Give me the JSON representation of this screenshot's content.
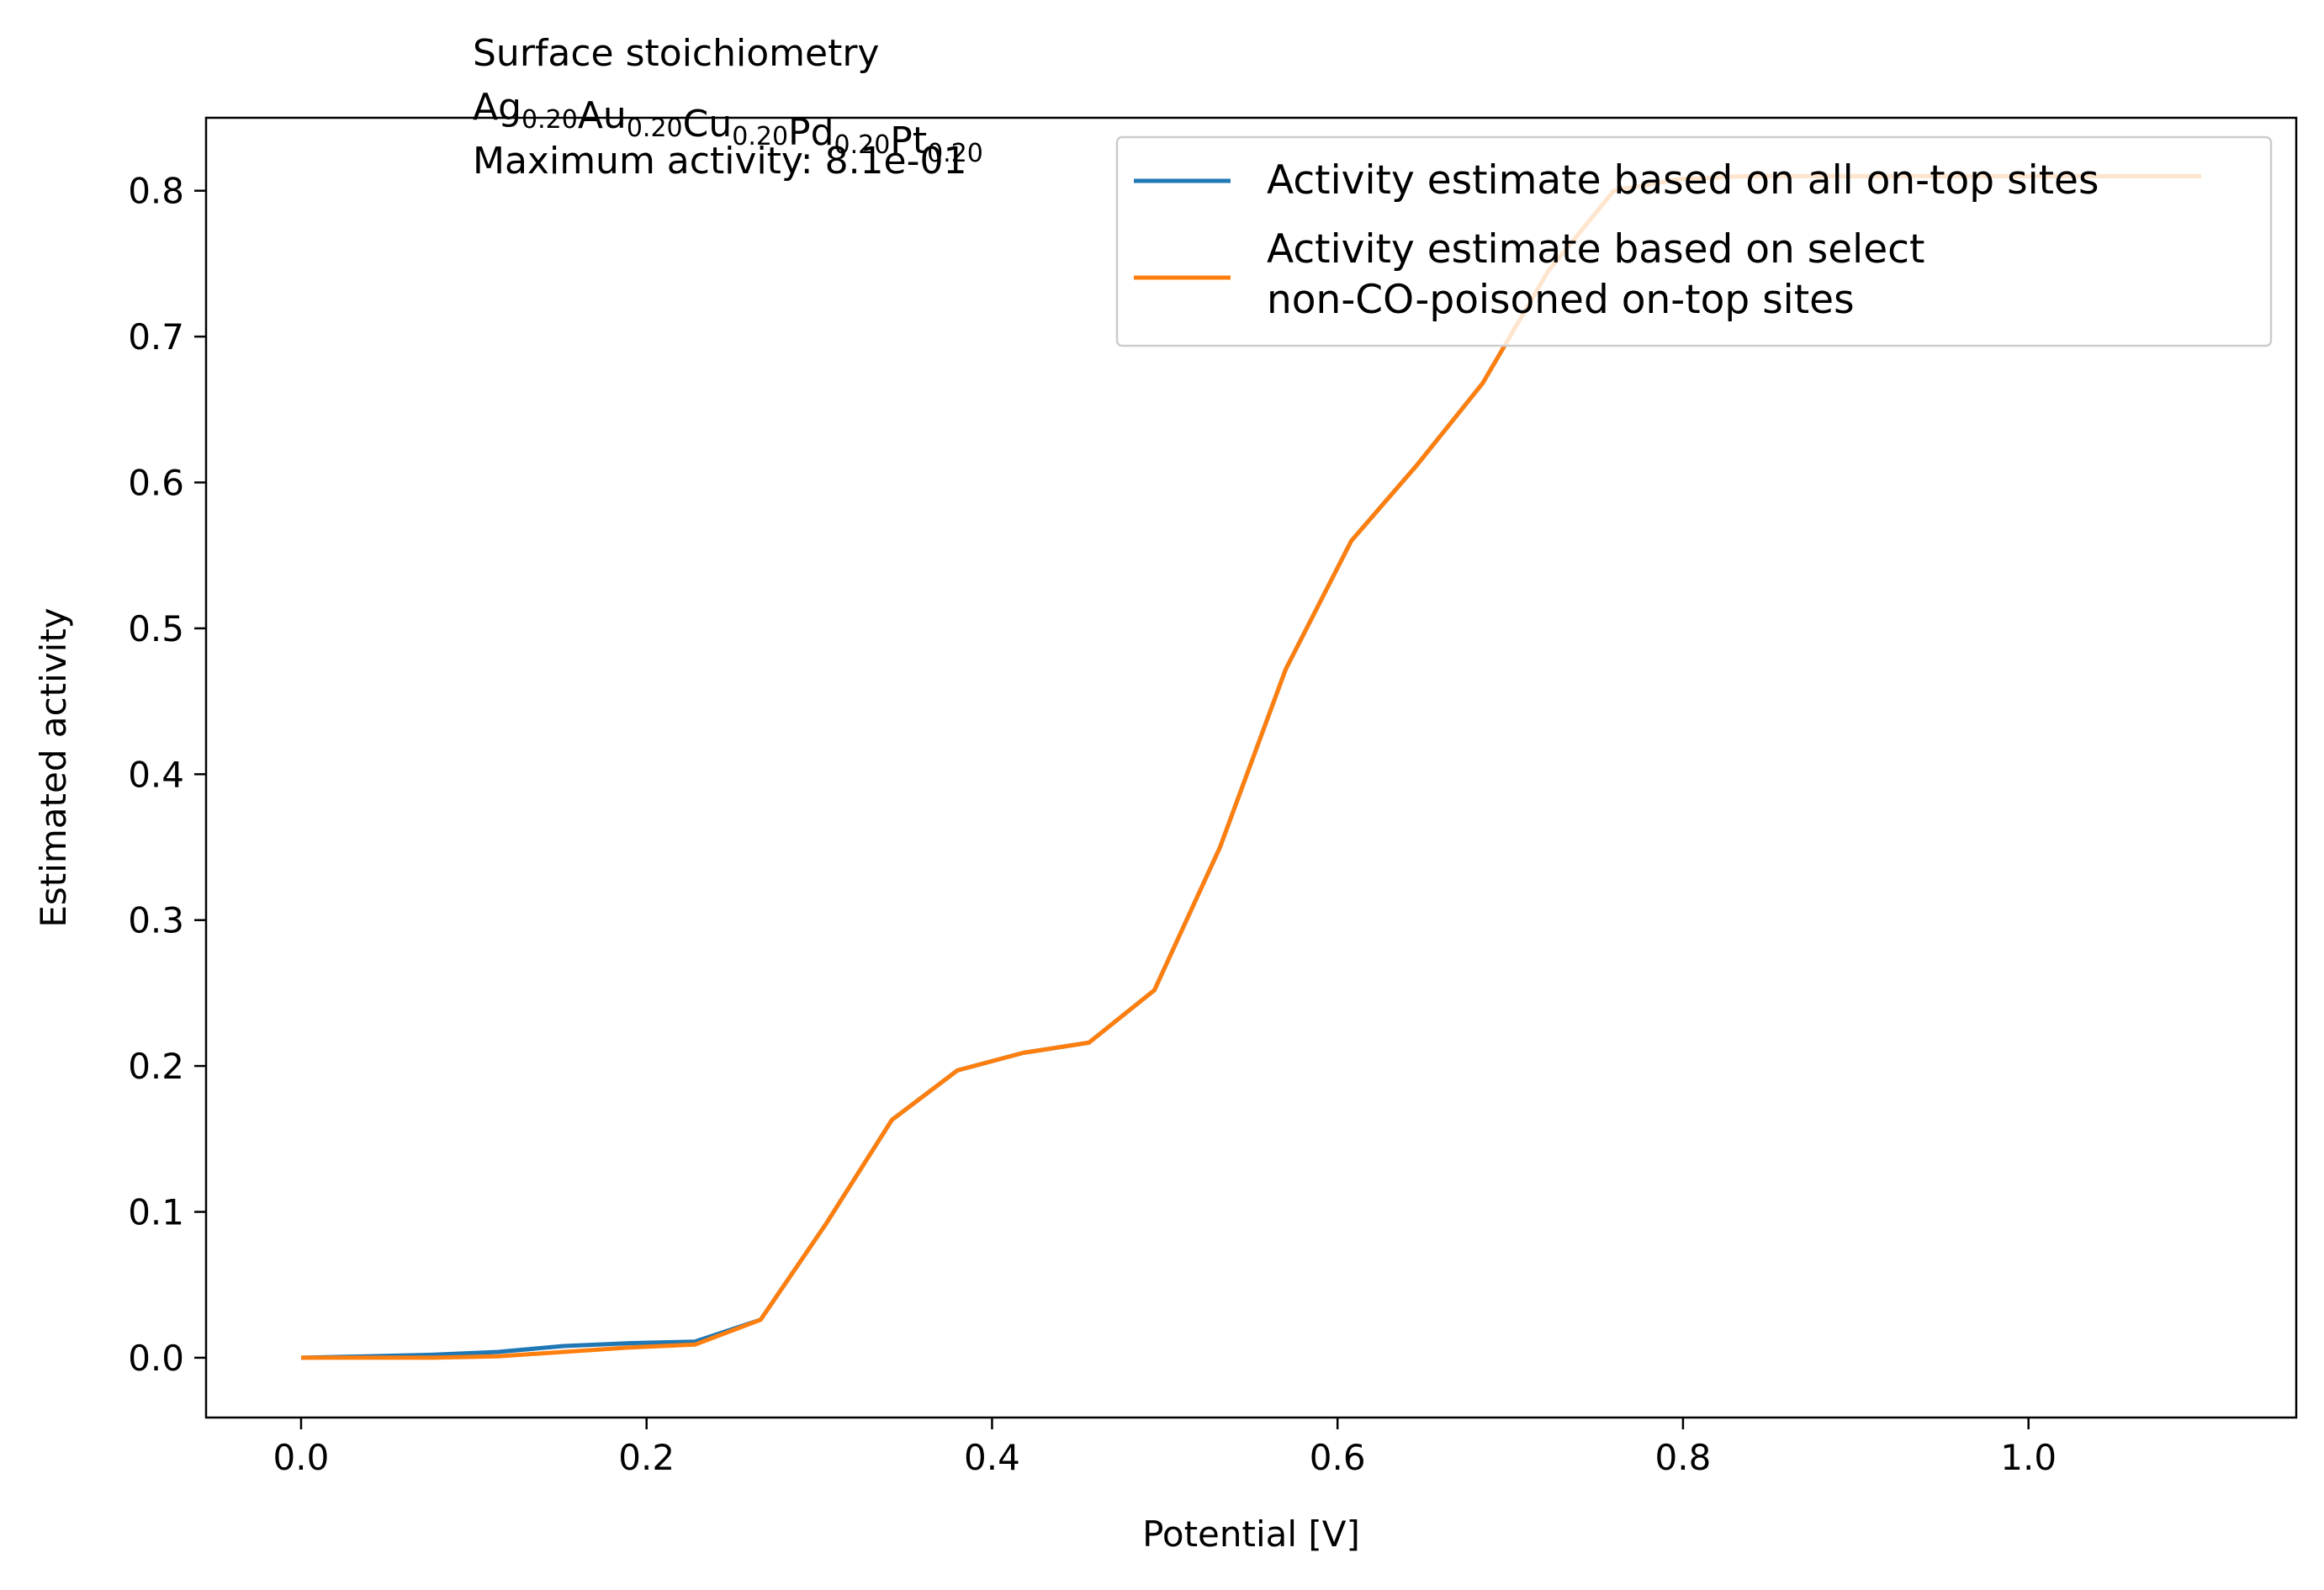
{
  "chart_data": {
    "type": "line",
    "xlabel": "Potential [V]",
    "ylabel": "Estimated activity",
    "xlim": [
      -0.055,
      1.155
    ],
    "ylim": [
      -0.041,
      0.85
    ],
    "xticks": [
      0.0,
      0.2,
      0.4,
      0.6,
      0.8,
      1.0
    ],
    "yticks": [
      0.0,
      0.1,
      0.2,
      0.3,
      0.4,
      0.5,
      0.6,
      0.7,
      0.8
    ],
    "xtick_labels": [
      "0.0",
      "0.2",
      "0.4",
      "0.6",
      "0.8",
      "1.0"
    ],
    "ytick_labels": [
      "0.0",
      "0.1",
      "0.2",
      "0.3",
      "0.4",
      "0.5",
      "0.6",
      "0.7",
      "0.8"
    ],
    "grid": false,
    "legend_position": "top-right",
    "annotation": {
      "line1": "Surface stoichiometry",
      "formula": [
        {
          "el": "Ag",
          "sub": "0.20"
        },
        {
          "el": "Au",
          "sub": "0.20"
        },
        {
          "el": "Cu",
          "sub": "0.20"
        },
        {
          "el": "Pd",
          "sub": "0.20"
        },
        {
          "el": "Pt",
          "sub": "0.20"
        }
      ],
      "line3": "Maximum activity: 8.1e-01"
    },
    "series": [
      {
        "name": "Activity estimate based on all on-top sites",
        "color": "#1f77b4",
        "x": [
          0.0,
          0.038,
          0.076,
          0.114,
          0.152,
          0.19,
          0.228,
          0.266,
          0.304,
          0.342,
          0.38,
          0.418,
          0.456,
          0.494,
          0.532,
          0.57,
          0.608,
          0.646,
          0.684,
          0.722,
          0.76,
          0.798,
          0.836,
          0.874,
          0.912,
          0.95,
          0.988,
          1.026,
          1.064,
          1.1
        ],
        "y": [
          0.0,
          0.001,
          0.002,
          0.004,
          0.008,
          0.01,
          0.011,
          0.026,
          0.092,
          0.163,
          0.197,
          0.209,
          0.216,
          0.252,
          0.35,
          0.472,
          0.56,
          0.612,
          0.668,
          0.745,
          0.8,
          0.808,
          0.81,
          0.81,
          0.81,
          0.81,
          0.81,
          0.81,
          0.81,
          0.81
        ]
      },
      {
        "name": "Activity estimate based on select\nnon-CO-poisoned on-top sites",
        "color": "#ff7f0e",
        "x": [
          0.0,
          0.038,
          0.076,
          0.114,
          0.152,
          0.19,
          0.228,
          0.266,
          0.304,
          0.342,
          0.38,
          0.418,
          0.456,
          0.494,
          0.532,
          0.57,
          0.608,
          0.646,
          0.684,
          0.722,
          0.76,
          0.798,
          0.836,
          0.874,
          0.912,
          0.95,
          0.988,
          1.026,
          1.064,
          1.1
        ],
        "y": [
          0.0,
          0.0,
          0.0,
          0.001,
          0.004,
          0.007,
          0.009,
          0.026,
          0.092,
          0.163,
          0.197,
          0.209,
          0.216,
          0.252,
          0.35,
          0.472,
          0.56,
          0.612,
          0.668,
          0.745,
          0.8,
          0.808,
          0.81,
          0.81,
          0.81,
          0.81,
          0.81,
          0.81,
          0.81,
          0.81
        ]
      }
    ]
  }
}
